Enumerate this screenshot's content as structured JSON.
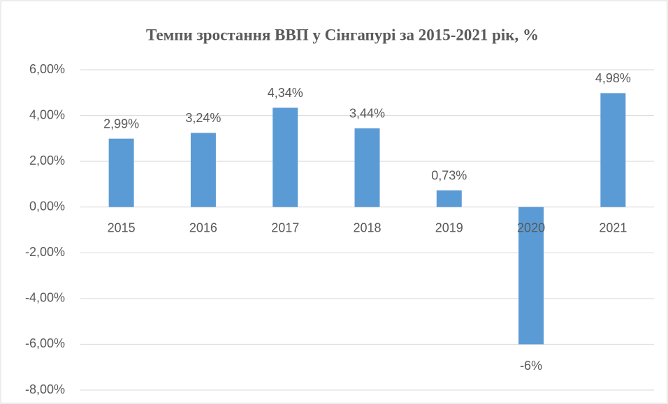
{
  "chart_data": {
    "type": "bar",
    "title": "Темпи зростання ВВП у Сінгапурі  за 2015-2021 рік, %",
    "categories": [
      "2015",
      "2016",
      "2017",
      "2018",
      "2019",
      "2020",
      "2021"
    ],
    "values": [
      2.99,
      3.24,
      4.34,
      3.44,
      0.73,
      -6,
      4.98
    ],
    "value_labels": [
      "2,99%",
      "3,24%",
      "4,34%",
      "3,44%",
      "0,73%",
      "-6%",
      "4,98%"
    ],
    "color": "#5b9bd5",
    "ylim": [
      -8,
      6
    ],
    "yticks": [
      {
        "value": -8,
        "label": "-8,00%"
      },
      {
        "value": -6,
        "label": "-6,00%"
      },
      {
        "value": -4,
        "label": "-4,00%"
      },
      {
        "value": -2,
        "label": "-2,00%"
      },
      {
        "value": 0,
        "label": "0,00%"
      },
      {
        "value": 2,
        "label": "2,00%"
      },
      {
        "value": 4,
        "label": "4,00%"
      },
      {
        "value": 6,
        "label": "6,00%"
      }
    ],
    "grid": true
  }
}
